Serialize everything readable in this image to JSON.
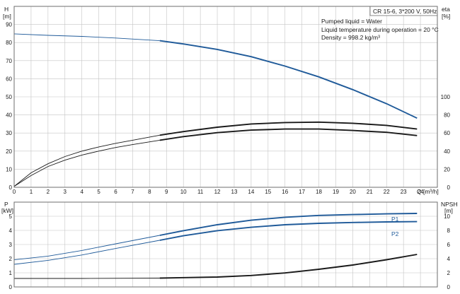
{
  "info": {
    "model": "CR 15-6, 3*200 V, 50Hz",
    "lines": [
      "Pumped liquid = Water",
      "Liquid temperature during operation = 20 °C",
      "Density = 998.2 kg/m³"
    ]
  },
  "colors": {
    "blue": "#1f5a99",
    "black": "#1a1a1a",
    "grid": "#c4c4c4",
    "frame": "#6e6e6e"
  },
  "chart_data": [
    {
      "type": "line",
      "xlabel": "Q [m³/h]",
      "x_unit": "[m³/h]",
      "xlim": [
        0,
        25
      ],
      "x_ticks": [
        0,
        1,
        2,
        3,
        4,
        5,
        6,
        7,
        8,
        9,
        10,
        11,
        12,
        13,
        14,
        15,
        16,
        17,
        18,
        19,
        20,
        21,
        22,
        23,
        24,
        25
      ],
      "y_axis_left": {
        "label": "H",
        "unit": "[m]",
        "ylim": [
          0,
          100
        ],
        "ticks": [
          0,
          10,
          20,
          30,
          40,
          50,
          60,
          70,
          80,
          90
        ]
      },
      "y_axis_right": {
        "label": "eta",
        "unit": "[%]",
        "ylim": [
          0,
          200
        ],
        "ticks": [
          0,
          20,
          40,
          60,
          80,
          100
        ]
      },
      "grid": true,
      "series": [
        {
          "role": "head",
          "axis": "left",
          "color": "#1f5a99",
          "x": [
            0,
            2,
            4,
            6,
            8.6,
            10,
            12,
            14,
            16,
            18,
            20,
            22,
            23.8
          ],
          "y": [
            84.8,
            84,
            83.4,
            82.5,
            81,
            79.2,
            76.2,
            72.2,
            67,
            61,
            54,
            46.2,
            38.2
          ]
        },
        {
          "role": "efficiency-upper",
          "axis": "left",
          "color": "#1a1a1a",
          "x": [
            0,
            1,
            2,
            3,
            4,
            5,
            6,
            7,
            8.6,
            10,
            12,
            14,
            16,
            18,
            20,
            22,
            23.8
          ],
          "y": [
            0.5,
            8,
            13,
            17,
            20,
            22.3,
            24.3,
            26,
            28.8,
            30.8,
            33.2,
            35,
            35.8,
            36,
            35.4,
            34.2,
            32.2
          ]
        },
        {
          "role": "efficiency-lower",
          "axis": "left",
          "color": "#1a1a1a",
          "x": [
            0,
            1,
            2,
            3,
            4,
            5,
            6,
            7,
            8.6,
            10,
            12,
            14,
            16,
            18,
            20,
            22,
            23.8
          ],
          "y": [
            0.5,
            6.5,
            11.5,
            15,
            17.8,
            20,
            22,
            23.6,
            26,
            28,
            30.2,
            31.6,
            32.2,
            32.2,
            31.4,
            30.4,
            28.6
          ]
        }
      ]
    },
    {
      "type": "line",
      "xlim": [
        0,
        25
      ],
      "y_axis_left": {
        "label": "P",
        "unit": "[kW]",
        "ylim": [
          0,
          6
        ],
        "ticks": [
          0,
          1,
          2,
          3,
          4,
          5
        ]
      },
      "y_axis_right": {
        "label": "NPSH",
        "unit": "[m]",
        "ylim": [
          0,
          12
        ],
        "ticks": [
          0,
          2,
          4,
          6,
          8,
          10
        ]
      },
      "grid": true,
      "series": [
        {
          "name": "P1",
          "axis": "left",
          "color": "#1f5a99",
          "x": [
            0,
            2,
            4,
            6,
            8.6,
            10,
            12,
            14,
            16,
            18,
            20,
            22,
            23.8
          ],
          "y": [
            1.92,
            2.18,
            2.58,
            3.05,
            3.65,
            3.98,
            4.4,
            4.72,
            4.93,
            5.06,
            5.12,
            5.17,
            5.2
          ]
        },
        {
          "name": "P2",
          "axis": "left",
          "color": "#1f5a99",
          "x": [
            0,
            2,
            4,
            6,
            8.6,
            10,
            12,
            14,
            16,
            18,
            20,
            22,
            23.8
          ],
          "y": [
            1.6,
            1.88,
            2.26,
            2.72,
            3.3,
            3.62,
            3.98,
            4.22,
            4.4,
            4.5,
            4.56,
            4.6,
            4.62
          ]
        },
        {
          "role": "npsh",
          "axis": "right",
          "color": "#1a1a1a",
          "x": [
            0,
            4,
            8.6,
            12,
            14,
            16,
            18,
            20,
            22,
            23.8
          ],
          "y": [
            1.2,
            1.2,
            1.25,
            1.4,
            1.62,
            1.98,
            2.5,
            3.1,
            3.85,
            4.6
          ]
        }
      ]
    }
  ]
}
